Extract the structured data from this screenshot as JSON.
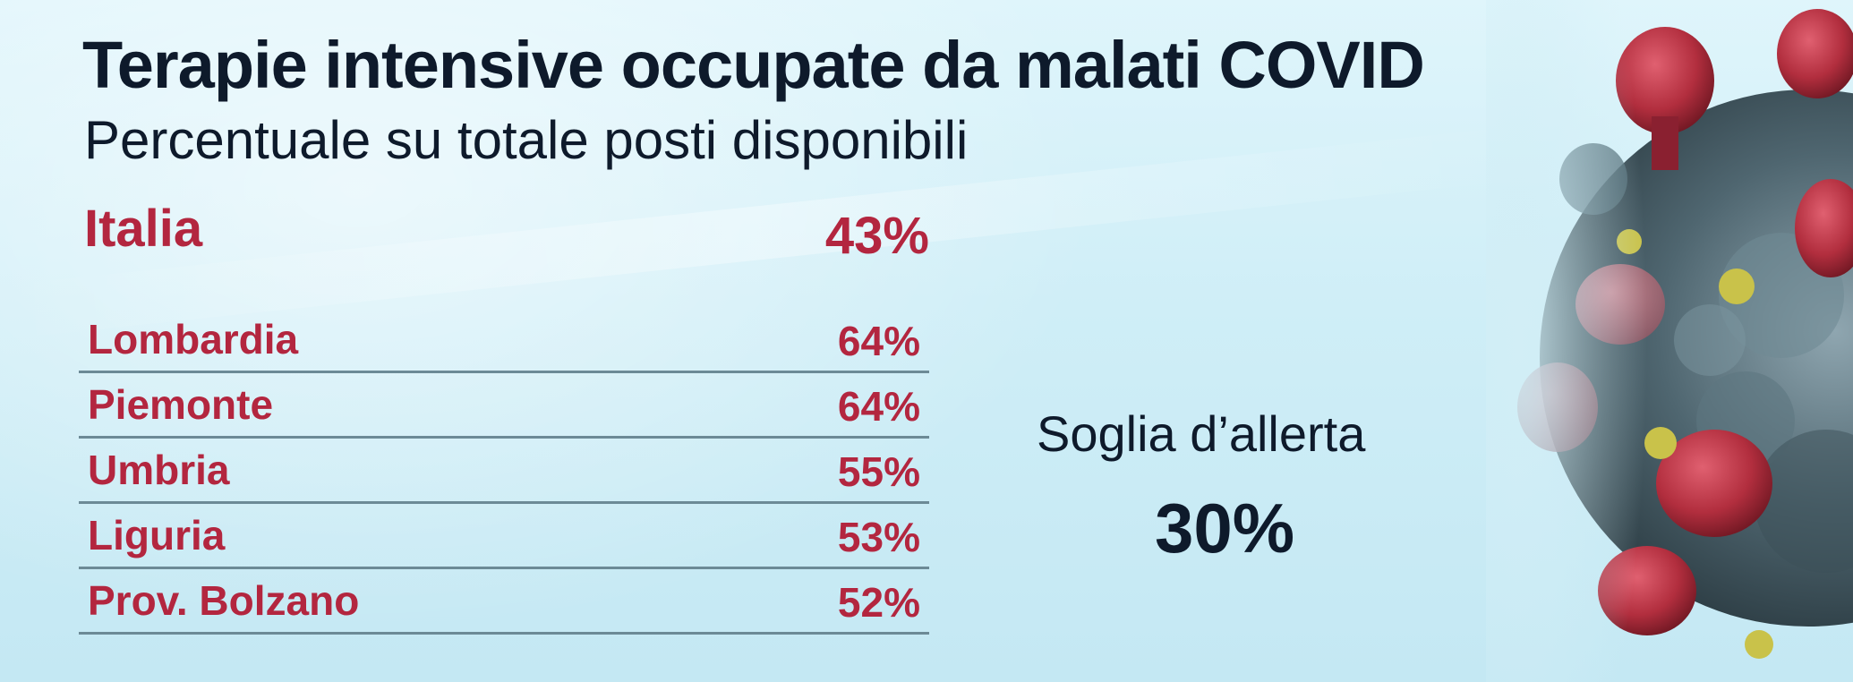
{
  "chart_data": {
    "type": "table",
    "title": "Terapie intensive occupate da malati COVID",
    "subtitle": "Percentuale su totale posti disponibili",
    "national": {
      "label": "Italia",
      "value": 43,
      "display": "43%"
    },
    "categories": [
      "Lombardia",
      "Piemonte",
      "Umbria",
      "Liguria",
      "Prov. Bolzano"
    ],
    "values": [
      64,
      64,
      55,
      53,
      52
    ],
    "rows": [
      {
        "label": "Lombardia",
        "display": "64%"
      },
      {
        "label": "Piemonte",
        "display": "64%"
      },
      {
        "label": "Umbria",
        "display": "55%"
      },
      {
        "label": "Liguria",
        "display": "53%"
      },
      {
        "label": "Prov. Bolzano",
        "display": "52%"
      }
    ],
    "threshold": {
      "label": "Soglia d’allerta",
      "value": 30,
      "display": "30%"
    }
  },
  "colors": {
    "accent": "#b3263f",
    "text_dark": "#0e1a2b",
    "divider": "#6c8a96",
    "background": "#d3f0f8"
  },
  "illustration": "coronavirus-illustration"
}
